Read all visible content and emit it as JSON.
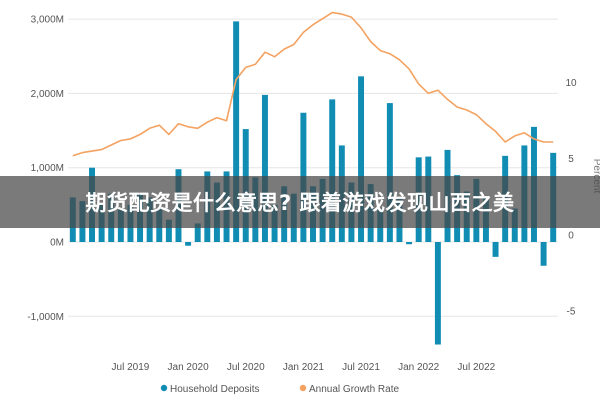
{
  "chart_data": {
    "type": "bar",
    "left_ticks": [
      "3,000M",
      "2,000M",
      "1,000M",
      "0M",
      "-1,000M"
    ],
    "left_tick_values": [
      3000,
      2000,
      1000,
      0,
      -1000
    ],
    "ylim": [
      -1400,
      3150
    ],
    "right_ticks": [
      "10",
      "5",
      "0",
      "-5"
    ],
    "right_tick_values": [
      10,
      5,
      0,
      -5
    ],
    "y2lim": [
      -7.3,
      14.9
    ],
    "y2label": "Percent",
    "x_ticks": [
      "Jul 2019",
      "Jan 2020",
      "Jul 2020",
      "Jan 2021",
      "Jul 2021",
      "Jan 2022",
      "Jul 2022"
    ],
    "x_tick_index": [
      6,
      12,
      18,
      24,
      30,
      36,
      42
    ],
    "bars": {
      "name": "Household Deposits",
      "color": "#118DB4",
      "values": [
        600,
        550,
        1000,
        500,
        650,
        450,
        500,
        650,
        600,
        450,
        300,
        980,
        -50,
        250,
        950,
        800,
        950,
        2970,
        1520,
        870,
        1980,
        500,
        750,
        650,
        1740,
        750,
        850,
        1920,
        1300,
        800,
        2230,
        780,
        450,
        1870,
        600,
        -30,
        1140,
        1150,
        -1380,
        1240,
        900,
        680,
        850,
        620,
        -200,
        1160,
        450,
        1300,
        1550,
        -320,
        1200
      ]
    },
    "line": {
      "name": "Annual Growth Rate",
      "color": "#F4A261",
      "values": [
        5.2,
        5.4,
        5.5,
        5.6,
        5.9,
        6.2,
        6.3,
        6.6,
        7.0,
        7.2,
        6.6,
        7.3,
        7.1,
        7.0,
        7.4,
        7.7,
        7.5,
        10.2,
        11.0,
        11.2,
        12.0,
        11.7,
        12.2,
        12.5,
        13.3,
        13.8,
        14.2,
        14.6,
        14.5,
        14.3,
        13.6,
        12.7,
        12.1,
        11.9,
        11.5,
        10.9,
        9.9,
        9.3,
        9.5,
        8.9,
        8.4,
        8.2,
        7.9,
        7.3,
        6.8,
        6.1,
        6.5,
        6.7,
        6.3,
        6.1,
        6.1
      ]
    },
    "legend_position": "bottom"
  },
  "banner": {
    "text": "期货配资是什么意思? 跟着游戏发现山西之美"
  }
}
